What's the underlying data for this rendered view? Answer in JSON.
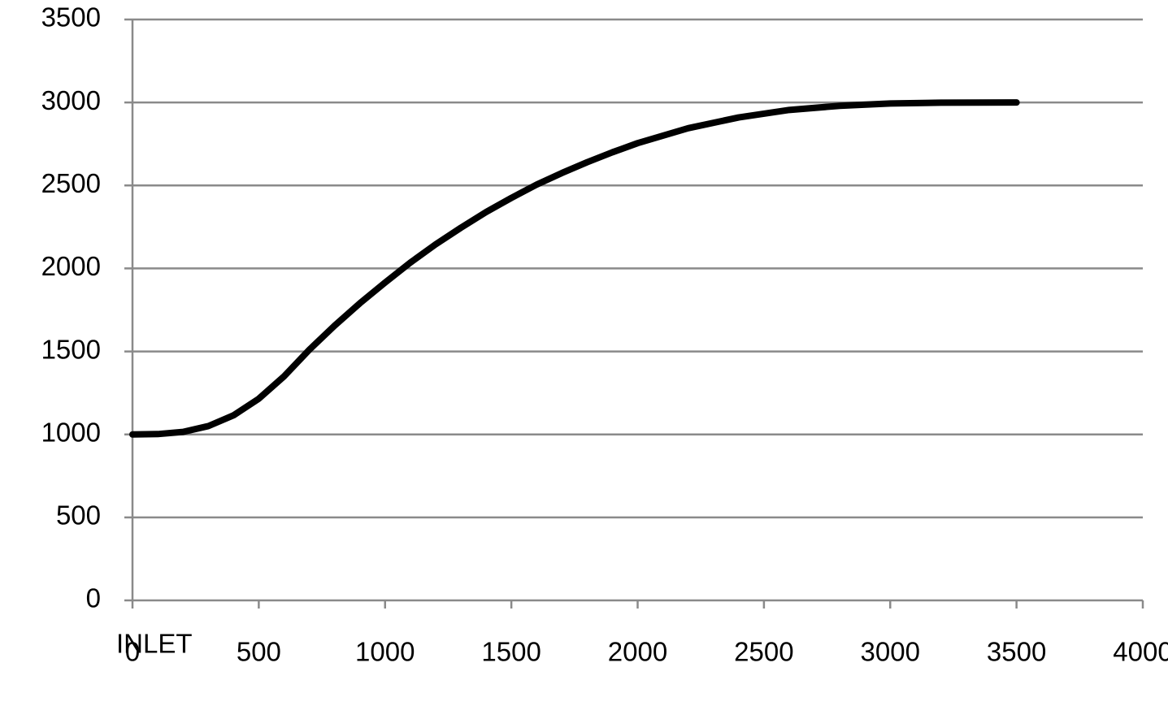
{
  "chart_data": {
    "type": "line",
    "annotation": "INLET",
    "x": [
      0,
      100,
      200,
      300,
      400,
      500,
      600,
      700,
      800,
      900,
      1000,
      1100,
      1200,
      1300,
      1400,
      1500,
      1600,
      1700,
      1800,
      1900,
      2000,
      2200,
      2400,
      2600,
      2800,
      3000,
      3200,
      3500
    ],
    "values": [
      1000,
      1002,
      1015,
      1050,
      1115,
      1215,
      1350,
      1510,
      1655,
      1790,
      1915,
      2035,
      2145,
      2245,
      2340,
      2425,
      2505,
      2575,
      2640,
      2700,
      2755,
      2845,
      2910,
      2955,
      2980,
      2994,
      2999,
      3000
    ],
    "color": "#000000",
    "xlim": [
      0,
      4000
    ],
    "xticks": [
      0,
      500,
      1000,
      1500,
      2000,
      2500,
      3000,
      3500,
      4000
    ],
    "ylim": [
      0,
      3500
    ],
    "yticks": [
      0,
      500,
      1000,
      1500,
      2000,
      2500,
      3000,
      3500
    ],
    "grid": true
  }
}
